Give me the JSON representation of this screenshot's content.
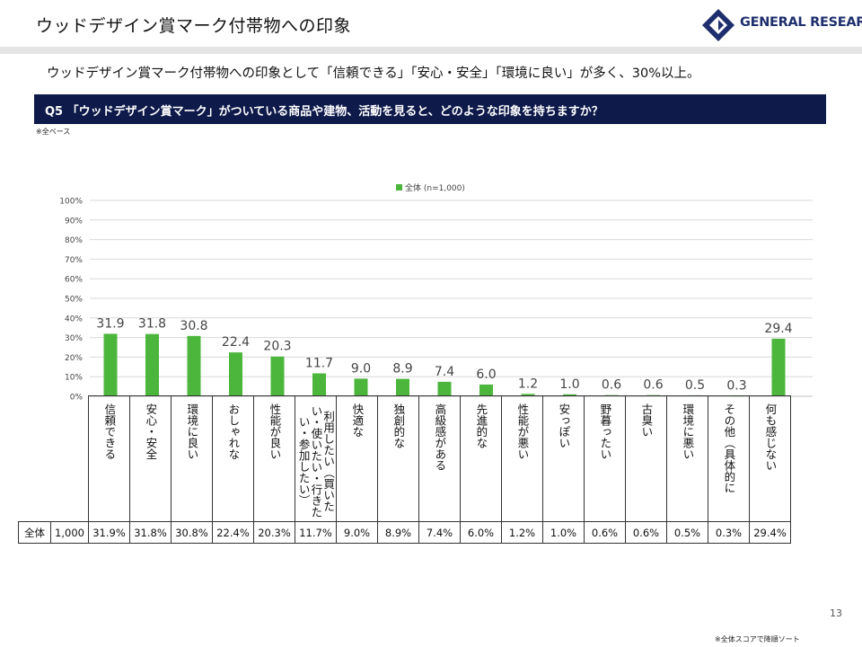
{
  "header": {
    "title": "ウッドデザイン賞マーク付帯物への印象",
    "logo_text": "GENERAL RESEARCH"
  },
  "summary": "ウッドデザイン賞マーク付帯物への印象として「信頼できる」「安心・安全」「環境に良い」が多く、30%以上。",
  "question": "Q5 「ウッドデザイン賞マーク」がついている商品や建物、活動を見ると、どのような印象を持ちますか？",
  "base_note": "※全ベース",
  "chart_data": {
    "type": "bar",
    "categories": [
      "信頼できる",
      "安心・安全",
      "環境に良い",
      "おしゃれな",
      "性能が良い",
      "利用したい（買いたい・使いたい・行きたい・参加したい）",
      "快適な",
      "独創的な",
      "高級感がある",
      "先進的な",
      "性能が悪い",
      "安っぽい",
      "野暮ったい",
      "古臭い",
      "環境に悪い",
      "その他（具体的に",
      "何も感じない"
    ],
    "series": [
      {
        "name": "全体 (n=1,000)",
        "values": [
          31.9,
          31.8,
          30.8,
          22.4,
          20.3,
          11.7,
          9.0,
          8.9,
          7.4,
          6.0,
          1.2,
          1.0,
          0.6,
          0.6,
          0.5,
          0.3,
          29.4
        ],
        "color": "#4cb63c"
      }
    ],
    "value_labels": [
      "31.9",
      "31.8",
      "30.8",
      "22.4",
      "20.3",
      "11.7",
      "9.0",
      "8.9",
      "7.4",
      "6.0",
      "1.2",
      "1.0",
      "0.6",
      "0.6",
      "0.5",
      "0.3",
      "29.4"
    ],
    "ylim": [
      0,
      100
    ],
    "yticks": [
      "0%",
      "10%",
      "20%",
      "30%",
      "40%",
      "50%",
      "60%",
      "70%",
      "80%",
      "90%",
      "100%"
    ],
    "grid": true,
    "legend": "top-center"
  },
  "table": {
    "row_label": "全体",
    "n": "1,000",
    "values": [
      "31.9%",
      "31.8%",
      "30.8%",
      "22.4%",
      "20.3%",
      "11.7%",
      "9.0%",
      "8.9%",
      "7.4%",
      "6.0%",
      "1.2%",
      "1.0%",
      "0.6%",
      "0.6%",
      "0.5%",
      "0.3%",
      "29.4%"
    ]
  },
  "page_number": "13",
  "footnote": "※全体スコアで降順ソート",
  "colors": {
    "accent": "#0e1a4a",
    "bar": "#4cb63c"
  }
}
